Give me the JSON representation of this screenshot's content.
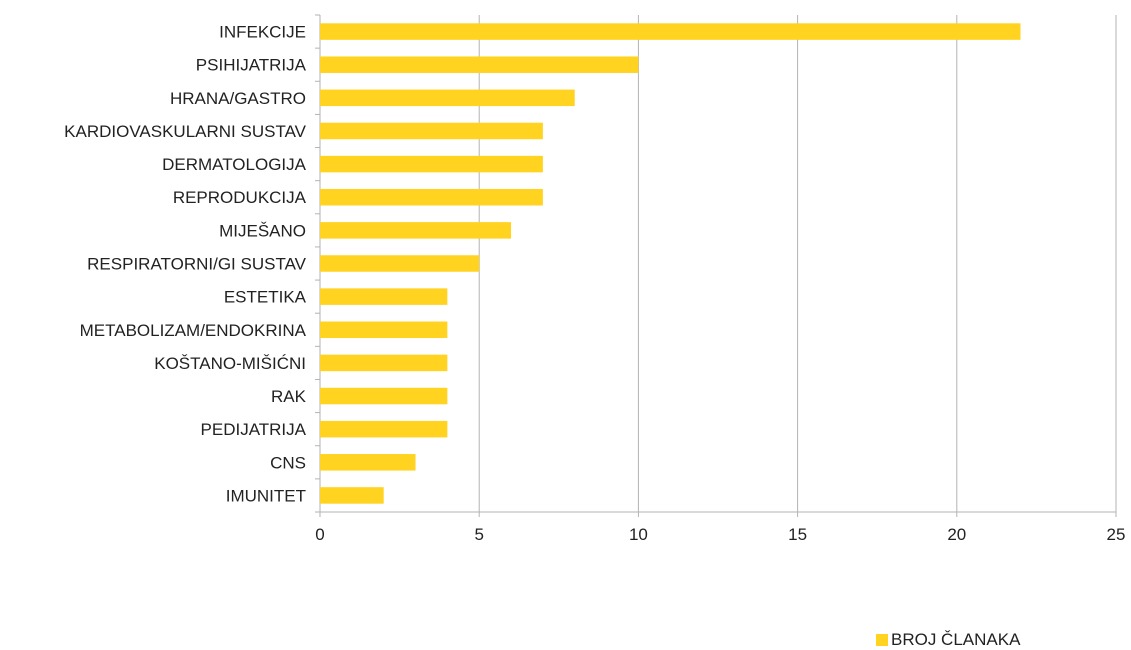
{
  "chart_data": {
    "type": "bar",
    "orientation": "horizontal",
    "categories": [
      "INFEKCIJE",
      "PSIHIJATRIJA",
      "HRANA/GASTRO",
      "KARDIOVASKULARNI SUSTAV",
      "DERMATOLOGIJA",
      "REPRODUKCIJA",
      "MIJEŠANO",
      "RESPIRATORNI/GI SUSTAV",
      "ESTETIKA",
      "METABOLIZAM/ENDOKRINA",
      "KOŠTANO-MIŠIĆNI",
      "RAK",
      "PEDIJATRIJA",
      "CNS",
      "IMUNITET"
    ],
    "series": [
      {
        "name": "BROJ ČLANAKA",
        "color": "#FFD320",
        "values": [
          22,
          10,
          8,
          7,
          7,
          7,
          6,
          5,
          4,
          4,
          4,
          4,
          4,
          3,
          2
        ]
      }
    ],
    "xlim": [
      0,
      25
    ],
    "xticks": [
      "0",
      "5",
      "10",
      "15",
      "20",
      "25"
    ],
    "grid": true,
    "legend_position": "bottom-right"
  }
}
